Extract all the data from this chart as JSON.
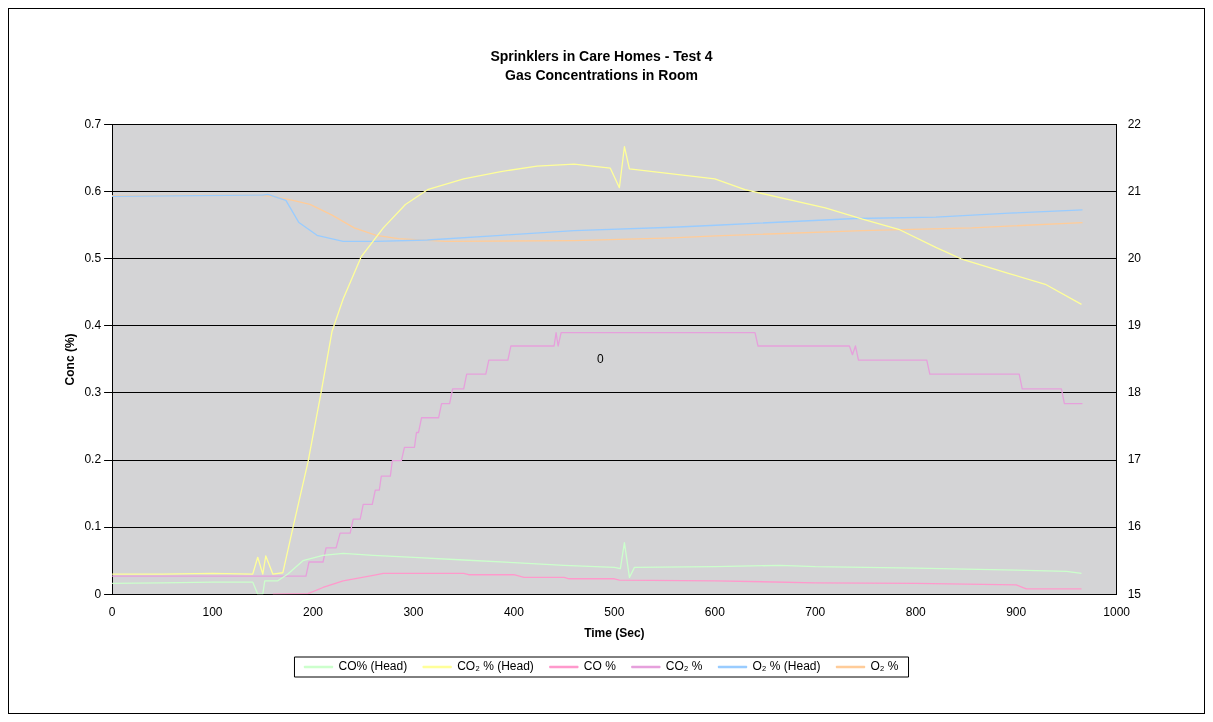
{
  "chart_data": {
    "type": "line",
    "title": "Sprinklers in Care Homes - Test 4",
    "subtitle": "Gas Concentrations in Room",
    "xlabel": "Time (Sec)",
    "ylabel": "Conc (%)",
    "xlim": [
      0,
      1000
    ],
    "xticks": [
      0,
      100,
      200,
      300,
      400,
      500,
      600,
      700,
      800,
      900,
      1000
    ],
    "ylim": [
      0,
      0.7
    ],
    "yticks": [
      0,
      0.1,
      0.2,
      0.3,
      0.4,
      0.5,
      0.6,
      0.7
    ],
    "y2lim": [
      15,
      22
    ],
    "y2ticks": [
      15,
      16,
      17,
      18,
      19,
      20,
      21,
      22
    ],
    "grid": "y",
    "legend": "bottom",
    "annotations": [
      "0"
    ],
    "series": [
      {
        "name": "CO% (Head)",
        "color": "#ccffcc",
        "x": [
          0,
          50,
          100,
          140,
          145,
          150,
          152,
          165,
          175,
          190,
          210,
          230,
          260,
          300,
          350,
          400,
          450,
          500,
          506,
          510,
          515,
          520,
          600,
          665,
          700,
          800,
          900,
          950,
          965
        ],
        "values": [
          0.016,
          0.017,
          0.018,
          0.018,
          0,
          0,
          0.02,
          0.02,
          0.03,
          0.05,
          0.058,
          0.061,
          0.058,
          0.055,
          0.051,
          0.047,
          0.043,
          0.04,
          0.038,
          0.077,
          0.025,
          0.04,
          0.041,
          0.043,
          0.041,
          0.039,
          0.036,
          0.034,
          0.031
        ]
      },
      {
        "name": "CO₂ % (Head)",
        "color": "#ffff99",
        "x": [
          0,
          50,
          100,
          140,
          145,
          150,
          153,
          160,
          170,
          180,
          195,
          208,
          219,
          230,
          248,
          270,
          292,
          314,
          350,
          387,
          423,
          460,
          496,
          505,
          510,
          515,
          600,
          630,
          710,
          747,
          783,
          820,
          845,
          893,
          929,
          965
        ],
        "values": [
          0.03,
          0.03,
          0.031,
          0.03,
          0.055,
          0.03,
          0.057,
          0.03,
          0.032,
          0.099,
          0.197,
          0.3,
          0.392,
          0.44,
          0.503,
          0.546,
          0.581,
          0.603,
          0.619,
          0.63,
          0.638,
          0.641,
          0.635,
          0.606,
          0.667,
          0.634,
          0.619,
          0.603,
          0.576,
          0.559,
          0.544,
          0.517,
          0.5,
          0.478,
          0.462,
          0.432
        ]
      },
      {
        "name": "CO %",
        "color": "#ff99cc",
        "x": [
          160,
          195,
          210,
          230,
          260,
          270,
          350,
          355,
          400,
          410,
          450,
          455,
          500,
          505,
          600,
          700,
          800,
          900,
          910,
          965
        ],
        "values": [
          0,
          0.001,
          0.01,
          0.02,
          0.028,
          0.031,
          0.031,
          0.029,
          0.029,
          0.025,
          0.025,
          0.023,
          0.023,
          0.021,
          0.02,
          0.017,
          0.016,
          0.014,
          0.008,
          0.008
        ]
      },
      {
        "name": "CO₂ %",
        "color": "#e6a0dc",
        "x": [
          0,
          193,
          196,
          210,
          213,
          223,
          227,
          237,
          240,
          247,
          250,
          259,
          262,
          266,
          268,
          277,
          279,
          288,
          291,
          301,
          303,
          305,
          308,
          325,
          328,
          336,
          339,
          350,
          353,
          372,
          375,
          394,
          397,
          440,
          442,
          444,
          447,
          640,
          643,
          734,
          737,
          740,
          743,
          811,
          814,
          903,
          906,
          945,
          948,
          966
        ],
        "values": [
          0.027,
          0.027,
          0.048,
          0.048,
          0.069,
          0.069,
          0.091,
          0.091,
          0.112,
          0.112,
          0.134,
          0.134,
          0.155,
          0.155,
          0.176,
          0.176,
          0.199,
          0.199,
          0.219,
          0.219,
          0.241,
          0.241,
          0.263,
          0.263,
          0.284,
          0.284,
          0.306,
          0.306,
          0.328,
          0.328,
          0.349,
          0.349,
          0.37,
          0.37,
          0.39,
          0.37,
          0.39,
          0.39,
          0.37,
          0.37,
          0.357,
          0.37,
          0.349,
          0.349,
          0.328,
          0.328,
          0.306,
          0.306,
          0.284,
          0.284
        ]
      },
      {
        "name": "O₂ % (Head)",
        "color": "#99ccff",
        "axis": "y2",
        "x": [
          0,
          150,
          155,
          173,
          186,
          204,
          230,
          263,
          314,
          387,
          460,
          558,
          601,
          740,
          820,
          893,
          966
        ],
        "values": [
          20.93,
          20.95,
          20.96,
          20.87,
          20.54,
          20.35,
          20.26,
          20.26,
          20.28,
          20.35,
          20.42,
          20.47,
          20.5,
          20.6,
          20.62,
          20.68,
          20.73
        ]
      },
      {
        "name": "O₂ %",
        "color": "#ffcc99",
        "axis": "y2",
        "x": [
          0,
          145,
          160,
          180,
          197,
          219,
          241,
          263,
          285,
          332,
          460,
          558,
          601,
          747,
          856,
          966
        ],
        "values": [
          20.94,
          20.95,
          20.93,
          20.87,
          20.81,
          20.65,
          20.46,
          20.35,
          20.3,
          20.26,
          20.27,
          20.31,
          20.34,
          20.42,
          20.46,
          20.54
        ]
      }
    ]
  }
}
